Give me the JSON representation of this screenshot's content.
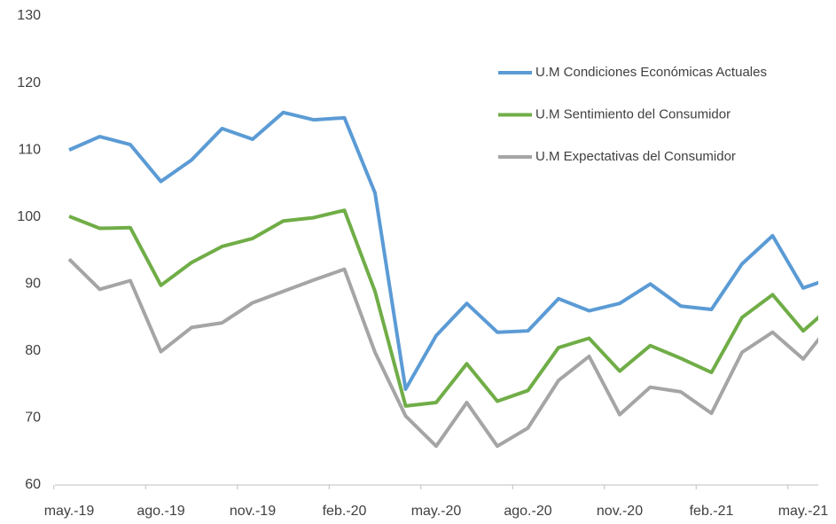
{
  "chart_data": {
    "type": "line",
    "categories": [
      "may.-19",
      null,
      null,
      "ago.-19",
      null,
      null,
      "nov.-19",
      null,
      null,
      "feb.-20",
      null,
      null,
      "may.-20",
      null,
      null,
      "ago.-20",
      null,
      null,
      "nov.-20",
      null,
      null,
      "feb.-21",
      null,
      null,
      "may.-21",
      null
    ],
    "series": [
      {
        "name": "U.M Condiciones Económicas Actuales",
        "color": "#5b9bd5",
        "values": [
          110,
          112,
          110.8,
          105.3,
          108.5,
          113.2,
          111.6,
          115.6,
          114.5,
          114.8,
          103.6,
          74.3,
          82.3,
          87.1,
          82.8,
          83,
          87.8,
          86,
          87.1,
          90,
          86.7,
          86.2,
          93,
          97.2,
          89.4,
          91
        ]
      },
      {
        "name": "U.M Sentimiento del Consumidor",
        "color": "#70ad47",
        "values": [
          100.1,
          98.3,
          98.4,
          89.8,
          93.2,
          95.6,
          96.8,
          99.4,
          99.9,
          101,
          88.9,
          71.8,
          72.3,
          78.1,
          72.5,
          74.1,
          80.5,
          81.9,
          77,
          80.8,
          78.9,
          76.8,
          85,
          88.4,
          83,
          87
        ]
      },
      {
        "name": "U.M Expectativas del Consumidor",
        "color": "#a5a5a5",
        "values": [
          93.7,
          89.2,
          90.5,
          79.9,
          83.5,
          84.2,
          87.2,
          88.9,
          90.6,
          92.2,
          79.8,
          70.3,
          65.8,
          72.3,
          65.8,
          68.5,
          75.6,
          79.2,
          70.5,
          74.6,
          73.9,
          70.7,
          79.8,
          82.8,
          78.8,
          84.6
        ]
      }
    ],
    "ylim": [
      60,
      130
    ],
    "yticks": [
      60,
      70,
      80,
      90,
      100,
      110,
      120,
      130
    ],
    "legend": "upper right",
    "grid": false
  }
}
